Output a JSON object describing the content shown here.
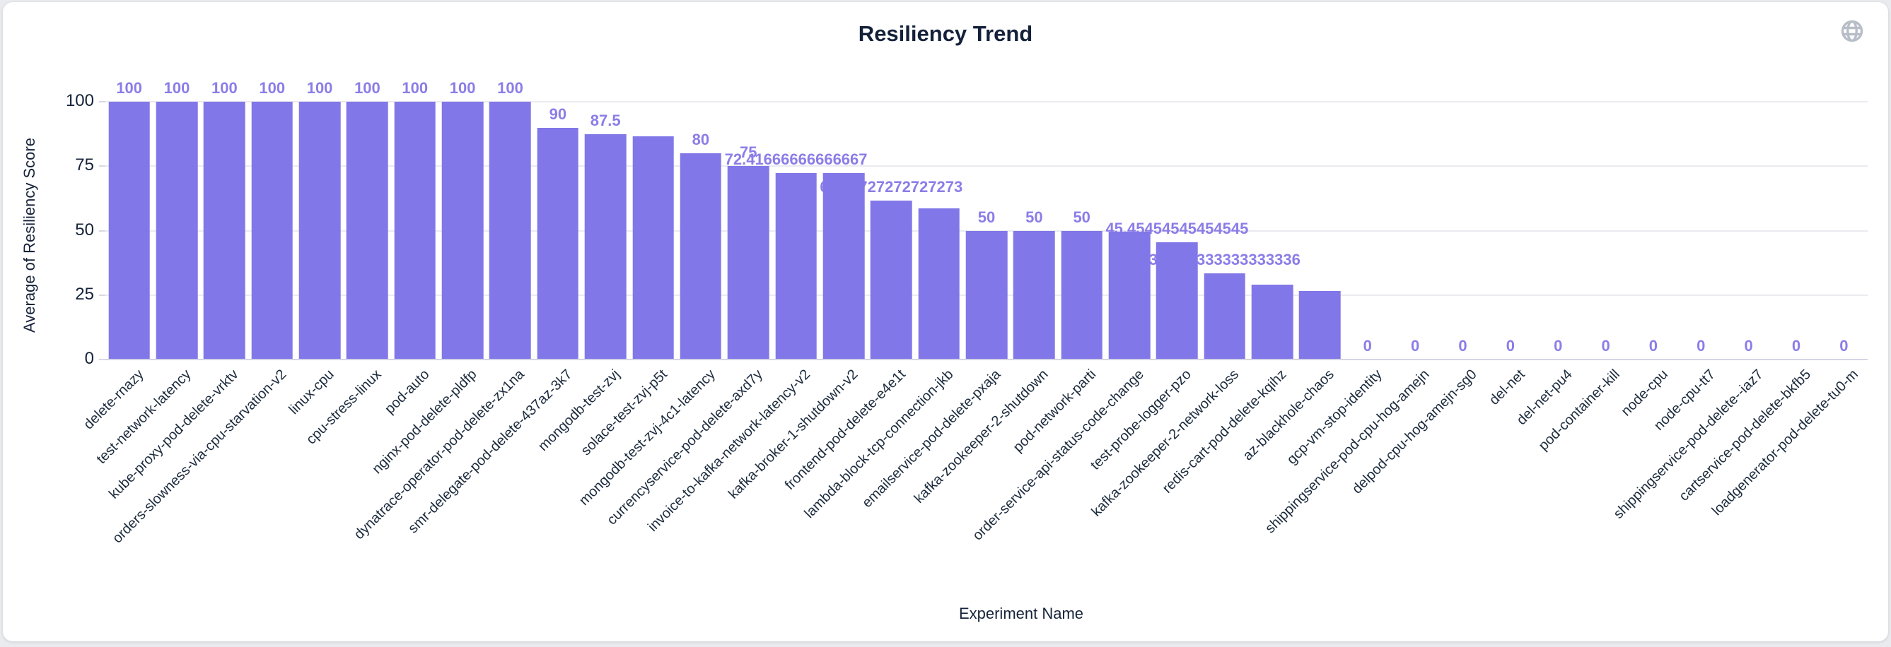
{
  "header": {
    "title": "Resiliency Trend",
    "toolbox_icon": "globe-icon"
  },
  "colors": {
    "bar": "#8277e8",
    "value_label": "#8b7de8",
    "axis_text": "#16233a",
    "x_label_text": "#1c2b3d",
    "grid_line": "#ebebf0",
    "axis_line": "#d4d4e6",
    "icon": "#b8bec8",
    "card_bg": "#ffffff",
    "page_bg": "#e9ebee"
  },
  "chart_data": {
    "type": "bar",
    "title": "Resiliency Trend",
    "xlabel": "Experiment Name",
    "ylabel": "Average of Resiliency Score",
    "ylim": [
      0,
      100
    ],
    "y_ticks": [
      0,
      25,
      50,
      75,
      100
    ],
    "grid": true,
    "legend": "none",
    "categories": [
      "delete-rnazy",
      "test-network-latency",
      "kube-proxy-pod-delete-vrktv",
      "orders-slowness-via-cpu-starvation-v2",
      "linux-cpu",
      "cpu-stress-linux",
      "pod-auto",
      "nginx-pod-delete-pldfp",
      "dynatrace-operator-pod-delete-zx1na",
      "smr-delegate-pod-delete-437az-3k7",
      "mongodb-test-zvj",
      "solace-test-zvj-p5t",
      "mongodb-test-zvj-4c1-latency",
      "currencyservice-pod-delete-axd7y",
      "invoice-to-kafka-network-latency-v2",
      "kafka-broker-1-shutdown-v2",
      "frontend-pod-delete-e4e1t",
      "lambda-block-tcp-connection-jkb",
      "emailservice-pod-delete-pxaja",
      "kafka-zookeeper-2-shutdown",
      "pod-network-parti",
      "order-service-api-status-code-change",
      "test-probe-logger-pzo",
      "kafka-zookeeper-2-network-loss",
      "redis-cart-pod-delete-kqihz",
      "az-blackhole-chaos",
      "gcp-vm-stop-identity",
      "shippingservice-pod-cpu-hog-amejn",
      "delpod-cpu-hog-amejn-sg0",
      "del-net",
      "del-net-pu4",
      "pod-container-kill",
      "node-cpu",
      "node-cpu-tt7",
      "shippingservice-pod-delete--iaz7",
      "cartservice-pod-delete-bkfb5",
      "loadgenerator-pod-delete-tu0-m"
    ],
    "values": [
      100,
      100,
      100,
      100,
      100,
      100,
      100,
      100,
      100,
      90,
      87.5,
      86.5,
      80,
      75,
      72.41666666666667,
      72.2,
      61.72727272727273,
      58.5,
      50,
      50,
      50,
      49.5,
      45.45454545454545,
      33.333333333333336,
      29,
      26.5,
      0,
      0,
      0,
      0,
      0,
      0,
      0,
      0,
      0,
      0,
      0
    ],
    "data_labels": [
      "100",
      "100",
      "100",
      "100",
      "100",
      "100",
      "100",
      "100",
      "100",
      "90",
      "87.5",
      null,
      "80",
      "75",
      "72.41666666666667",
      null,
      "61.72727272727273",
      null,
      "50",
      "50",
      "50",
      null,
      "45.45454545454545",
      "33.333333333333336",
      null,
      null,
      "0",
      "0",
      "0",
      "0",
      "0",
      "0",
      "0",
      "0",
      "0",
      "0",
      "0"
    ],
    "hidden_label_value_indexes_estimated": [
      11,
      15,
      17,
      21,
      24,
      25
    ]
  }
}
